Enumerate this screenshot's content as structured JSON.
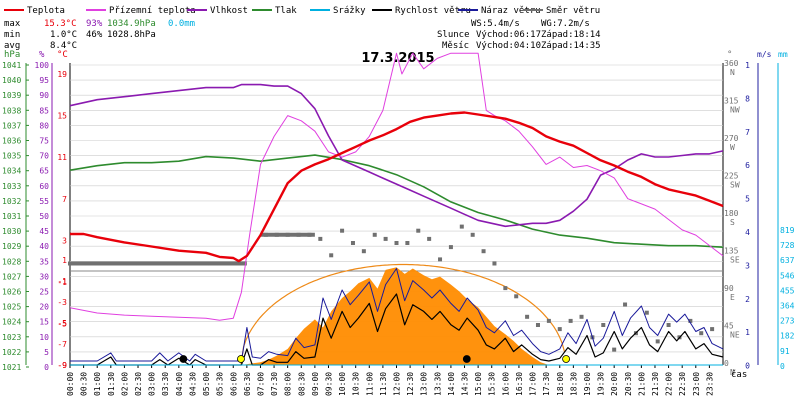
{
  "chart_data": {
    "type": "line",
    "title": "17.3.2015",
    "legend": [
      {
        "label": "Teplota",
        "color": "#e8000a"
      },
      {
        "label": "Přízemní teplota",
        "color": "#e040e0"
      },
      {
        "label": "Vlhkost",
        "color": "#8a1ab0"
      },
      {
        "label": "Tlak",
        "color": "#2e8b2e"
      },
      {
        "label": "Srážky",
        "color": "#00b0e0"
      },
      {
        "label": "Rychlost větru",
        "color": "#000000"
      },
      {
        "label": "Náraz větru",
        "color": "#1a1a9a"
      },
      {
        "label": "Směr větru",
        "color": "#707070"
      }
    ],
    "stats": {
      "max_label": "max",
      "max_temp": "15.3°C",
      "max_hum": "93%",
      "max_press": "1034.9hPa",
      "max_rain": "0.0mm",
      "min_label": "min",
      "min_temp": "1.0°C",
      "min_hum": "46%",
      "min_press": "1028.8hPa",
      "avg_label": "avg",
      "avg_temp": "8.4°C"
    },
    "info": {
      "ws": "WS:5.4m/s",
      "wg": "WG:7.2m/s",
      "sun_label": "Slunce",
      "sun_rise": "Východ:06:17",
      "sun_set": "Západ:18:14",
      "moon_label": "Měsíc",
      "moon_rise": "Východ:04:10",
      "moon_set": "Západ:14:35"
    },
    "axis_heads": {
      "hpa": "hPa",
      "pct": "%",
      "degc": "°C",
      "deg": "°",
      "ms": "m/s",
      "mm": "mm"
    },
    "axes": {
      "pressure_ticks": [
        "1041",
        "1040",
        "1039",
        "1038",
        "1037",
        "1036",
        "1035",
        "1034",
        "1033",
        "1032",
        "1031",
        "1030",
        "1029",
        "1028",
        "1027",
        "1026",
        "1025",
        "1024",
        "1023",
        "1022",
        "1021"
      ],
      "humidity_ticks": [
        "100",
        "95",
        "90",
        "85",
        "80",
        "75",
        "70",
        "65",
        "60",
        "55",
        "50",
        "45",
        "40",
        "35",
        "30",
        "25",
        "20",
        "15",
        "10",
        "5",
        "0"
      ],
      "temp_ticks": [
        "19",
        "15",
        "11",
        "7",
        "3",
        "-1",
        "-5",
        "-9"
      ],
      "temp_ticks_lower": [
        "1",
        "-1",
        "-3",
        "-5",
        "-7",
        "-9"
      ],
      "wind_dir_ticks": [
        {
          "deg": "360",
          "dir": "N"
        },
        {
          "deg": "315",
          "dir": "NW"
        },
        {
          "deg": "270",
          "dir": "W"
        },
        {
          "deg": "225",
          "dir": "SW"
        },
        {
          "deg": "180",
          "dir": "S"
        },
        {
          "deg": "135",
          "dir": "SE"
        },
        {
          "deg": "90",
          "dir": "E"
        },
        {
          "deg": "45",
          "dir": "NE"
        },
        {
          "deg": "0",
          "dir": "N"
        }
      ],
      "wind_speed_ticks": [
        "1",
        "8",
        "7",
        "6",
        "5",
        "4",
        "3",
        "2",
        "1",
        "0"
      ],
      "rain_ticks": [
        "819",
        "728",
        "637",
        "546",
        "455",
        "364",
        "273",
        "182",
        "91",
        "0"
      ],
      "time_ticks": [
        "00:00",
        "00:30",
        "01:00",
        "01:30",
        "02:00",
        "02:30",
        "03:00",
        "03:30",
        "04:00",
        "04:30",
        "05:00",
        "05:30",
        "06:00",
        "06:30",
        "07:00",
        "07:30",
        "08:00",
        "08:30",
        "09:00",
        "09:30",
        "10:00",
        "10:30",
        "11:00",
        "11:30",
        "12:00",
        "12:30",
        "13:00",
        "13:30",
        "14:00",
        "14:30",
        "15:00",
        "15:30",
        "16:00",
        "16:30",
        "17:00",
        "17:30",
        "18:00",
        "18:30",
        "19:00",
        "19:30",
        "20:00",
        "20:30",
        "21:00",
        "21:30",
        "22:00",
        "22:30",
        "23:00",
        "23:30"
      ],
      "time_label": "čas"
    },
    "x_range_hours": [
      0,
      24
    ],
    "series": [
      {
        "name": "Teplota",
        "unit": "°C",
        "color": "#e8000a",
        "x": [
          0,
          0.5,
          1,
          2,
          3,
          4,
          5,
          5.5,
          6,
          6.2,
          6.5,
          7,
          7.5,
          8,
          8.5,
          9,
          9.5,
          10,
          10.5,
          11,
          11.5,
          12,
          12.5,
          13,
          13.5,
          14,
          14.5,
          15,
          15.5,
          16,
          16.5,
          17,
          17.5,
          18,
          18.5,
          19,
          19.5,
          20,
          20.5,
          21,
          21.5,
          22,
          22.5,
          23,
          23.5,
          24
        ],
        "y": [
          3.6,
          3.6,
          3.3,
          2.8,
          2.4,
          2.0,
          1.8,
          1.4,
          1.3,
          1.0,
          1.5,
          3.5,
          6.0,
          8.5,
          9.7,
          10.3,
          10.8,
          11.4,
          12.0,
          12.6,
          13.1,
          13.7,
          14.4,
          14.8,
          15.0,
          15.2,
          15.3,
          15.1,
          14.9,
          14.7,
          14.3,
          13.8,
          13.0,
          12.5,
          12.1,
          11.4,
          10.7,
          10.2,
          9.6,
          9.1,
          8.4,
          7.9,
          7.6,
          7.3,
          6.8,
          6.3
        ]
      },
      {
        "name": "Přízemní teplota",
        "unit": "°C",
        "color": "#e040e0",
        "x": [
          0,
          1,
          2,
          3,
          4,
          5,
          5.5,
          6,
          6.3,
          6.6,
          7,
          7.5,
          8,
          8.5,
          9,
          9.5,
          10,
          10.5,
          11,
          11.5,
          12,
          12.2,
          12.6,
          13,
          13.5,
          14,
          14.5,
          15,
          15.3,
          15.6,
          16,
          16.5,
          17,
          17.5,
          18,
          18.5,
          19,
          19.5,
          20,
          20.5,
          21,
          21.5,
          22,
          22.5,
          23,
          23.5,
          24
        ],
        "y": [
          -3.5,
          -4.0,
          -4.2,
          -4.3,
          -4.4,
          -4.5,
          -4.7,
          -4.5,
          -2,
          3.5,
          10.3,
          13.0,
          15.0,
          14.5,
          13.5,
          11.5,
          11.0,
          11.5,
          13.0,
          15.5,
          21.0,
          19.0,
          21.0,
          19.5,
          20.5,
          21.0,
          21.0,
          21.0,
          15.5,
          15.0,
          14.5,
          13.5,
          12.0,
          10.3,
          11.0,
          10.0,
          10.2,
          9.7,
          9.0,
          7.0,
          6.5,
          6.0,
          5.0,
          4.0,
          3.5,
          2.5,
          1.5
        ]
      },
      {
        "name": "Vlhkost",
        "unit": "%",
        "color": "#8a1ab0",
        "x": [
          0,
          0.5,
          1,
          2,
          3,
          4,
          5,
          5.5,
          6,
          6.3,
          6.6,
          7,
          7.5,
          8,
          8.5,
          9,
          9.5,
          10,
          10.5,
          11,
          11.5,
          12,
          12.5,
          13,
          13.5,
          14,
          14.5,
          15,
          15.5,
          16,
          16.5,
          17,
          17.5,
          18,
          18.5,
          19,
          19.5,
          20,
          20.5,
          21,
          21.5,
          22,
          22.5,
          23,
          23.5,
          24
        ],
        "y": [
          86,
          87,
          88,
          89,
          90,
          91,
          92,
          92,
          92,
          93,
          93,
          93,
          92.5,
          92.5,
          90,
          85,
          76,
          68,
          66,
          64,
          62,
          60,
          58,
          56,
          54,
          52,
          50,
          48,
          47,
          46,
          46.5,
          47,
          47,
          48,
          51,
          55,
          63,
          65,
          68,
          70,
          69,
          69,
          69.5,
          70,
          70,
          71
        ]
      },
      {
        "name": "Tlak",
        "unit": "hPa",
        "color": "#2e8b2e",
        "x": [
          0,
          1,
          2,
          3,
          4,
          5,
          6,
          7,
          8,
          9,
          10,
          11,
          12,
          13,
          14,
          15,
          16,
          17,
          18,
          19,
          20,
          21,
          22,
          23,
          24
        ],
        "y": [
          1033.9,
          1034.2,
          1034.4,
          1034.4,
          1034.5,
          1034.8,
          1034.7,
          1034.5,
          1034.7,
          1034.9,
          1034.6,
          1034.2,
          1033.6,
          1032.8,
          1031.8,
          1031.1,
          1030.6,
          1030.0,
          1029.6,
          1029.4,
          1029.1,
          1029.0,
          1028.9,
          1028.9,
          1028.8
        ]
      },
      {
        "name": "Srážky",
        "unit": "mm",
        "color": "#00b0e0",
        "x": [
          0,
          24
        ],
        "y": [
          0,
          0
        ]
      }
    ],
    "sun_curve_color": "#ee8a18",
    "sun_fill_color": "#ff8c00",
    "sun_fill": [
      {
        "t": 6.3,
        "v": 0.0
      },
      {
        "t": 6.6,
        "v": 0.1
      },
      {
        "t": 7.0,
        "v": 0.2
      },
      {
        "t": 7.3,
        "v": 0.4
      },
      {
        "t": 7.6,
        "v": 0.7
      },
      {
        "t": 8.0,
        "v": 1.2
      },
      {
        "t": 8.3,
        "v": 2.0
      },
      {
        "t": 8.6,
        "v": 2.7
      },
      {
        "t": 9.0,
        "v": 3.4
      },
      {
        "t": 9.3,
        "v": 2.8
      },
      {
        "t": 9.6,
        "v": 4.0
      },
      {
        "t": 10.0,
        "v": 5.0
      },
      {
        "t": 10.3,
        "v": 5.5
      },
      {
        "t": 10.6,
        "v": 6.1
      },
      {
        "t": 11.0,
        "v": 6.5
      },
      {
        "t": 11.3,
        "v": 5.7
      },
      {
        "t": 11.6,
        "v": 7.1
      },
      {
        "t": 12.0,
        "v": 7.3
      },
      {
        "t": 12.3,
        "v": 6.8
      },
      {
        "t": 12.6,
        "v": 7.2
      },
      {
        "t": 13.0,
        "v": 6.7
      },
      {
        "t": 13.3,
        "v": 6.4
      },
      {
        "t": 13.6,
        "v": 6.6
      },
      {
        "t": 14.0,
        "v": 6.0
      },
      {
        "t": 14.3,
        "v": 5.5
      },
      {
        "t": 14.6,
        "v": 4.9
      },
      {
        "t": 15.0,
        "v": 4.3
      },
      {
        "t": 15.3,
        "v": 3.6
      },
      {
        "t": 15.6,
        "v": 2.9
      },
      {
        "t": 16.0,
        "v": 2.3
      },
      {
        "t": 16.3,
        "v": 1.8
      },
      {
        "t": 16.6,
        "v": 1.2
      },
      {
        "t": 17.0,
        "v": 0.6
      },
      {
        "t": 17.3,
        "v": 0.2
      },
      {
        "t": 17.6,
        "v": 0.0
      }
    ],
    "wind_speed": {
      "name": "Rychlost větru",
      "unit": "m/s",
      "color": "#000000",
      "x": [
        0,
        1,
        1.5,
        1.7,
        2,
        3,
        3.3,
        3.6,
        4,
        4.4,
        4.6,
        5,
        5.5,
        6.3,
        6.5,
        6.7,
        7,
        7.3,
        7.6,
        8,
        8.3,
        8.6,
        9,
        9.3,
        9.6,
        10,
        10.3,
        10.6,
        11,
        11.3,
        11.6,
        12,
        12.3,
        12.6,
        13,
        13.3,
        13.6,
        14,
        14.3,
        14.6,
        15,
        15.3,
        15.6,
        16,
        16.3,
        16.6,
        17,
        17.3,
        17.6,
        18,
        18.3,
        18.6,
        19,
        19.3,
        19.6,
        20,
        20.3,
        20.6,
        21,
        21.3,
        21.6,
        22,
        22.3,
        22.6,
        23,
        23.3,
        23.6,
        24
      ],
      "y": [
        0,
        0,
        0.6,
        0,
        0,
        0,
        0.4,
        0,
        0.5,
        0,
        0.4,
        0,
        0,
        0,
        1.2,
        0,
        0,
        0.4,
        0.2,
        0.2,
        1.0,
        0.5,
        0.6,
        3.5,
        2.0,
        4.0,
        2.8,
        3.5,
        4.6,
        2.5,
        4.2,
        5.3,
        3.0,
        4.5,
        4.0,
        3.4,
        4.0,
        3.0,
        2.6,
        3.5,
        2.6,
        1.5,
        1.2,
        2.0,
        1.0,
        1.5,
        0.8,
        0.4,
        0.3,
        0.5,
        1.3,
        0.8,
        2.2,
        0.6,
        0.9,
        2.5,
        1.2,
        2.0,
        2.8,
        1.5,
        1.0,
        2.5,
        1.8,
        2.5,
        1.2,
        1.6,
        0.8,
        0.6
      ]
    },
    "wind_gust": {
      "name": "Náraz větru",
      "unit": "m/s",
      "color": "#1a1a9a",
      "x": [
        0,
        1,
        1.5,
        1.7,
        2,
        3,
        3.3,
        3.6,
        4,
        4.4,
        4.6,
        5,
        5.5,
        6.3,
        6.5,
        6.7,
        7,
        7.3,
        7.6,
        8,
        8.3,
        8.6,
        9,
        9.3,
        9.6,
        10,
        10.3,
        10.6,
        11,
        11.3,
        11.6,
        12,
        12.3,
        12.6,
        13,
        13.3,
        13.6,
        14,
        14.3,
        14.6,
        15,
        15.3,
        15.6,
        16,
        16.3,
        16.6,
        17,
        17.3,
        17.6,
        18,
        18.3,
        18.6,
        19,
        19.3,
        19.6,
        20,
        20.3,
        20.6,
        21,
        21.3,
        21.6,
        22,
        22.3,
        22.6,
        23,
        23.3,
        23.6,
        24
      ],
      "y": [
        0.3,
        0.3,
        0.9,
        0.3,
        0.3,
        0.3,
        0.9,
        0.3,
        0.9,
        0.3,
        0.8,
        0.3,
        0.3,
        0.3,
        2.8,
        0.6,
        0.5,
        1.0,
        0.8,
        0.7,
        2.0,
        1.3,
        1.5,
        5.0,
        3.4,
        5.6,
        4.5,
        5.2,
        6.2,
        4.0,
        6.0,
        7.2,
        4.8,
        6.3,
        5.6,
        5.0,
        5.6,
        4.6,
        4.0,
        5.0,
        4.1,
        2.8,
        2.4,
        3.3,
        2.2,
        2.6,
        1.6,
        1.0,
        0.8,
        1.2,
        2.4,
        1.6,
        3.4,
        1.4,
        2.0,
        4.0,
        2.2,
        3.5,
        4.4,
        2.8,
        2.2,
        3.8,
        3.2,
        3.8,
        2.5,
        2.8,
        1.6,
        1.2
      ]
    },
    "wind_dir": {
      "name": "Směr větru",
      "unit": "°",
      "color": "#707070",
      "x": [
        0,
        0.5,
        1,
        1.5,
        2,
        2.5,
        3,
        3.5,
        4,
        4.5,
        5,
        5.5,
        6,
        7.2,
        7.6,
        8,
        8.4,
        8.8,
        9.2,
        9.6,
        10,
        10.4,
        10.8,
        11.2,
        11.6,
        12,
        12.4,
        12.8,
        13.2,
        13.6,
        14,
        14.4,
        14.8,
        15.2,
        15.6,
        16,
        16.4,
        16.8,
        17.2,
        17.6,
        18,
        18.4,
        18.8,
        19.2,
        19.6,
        20,
        20.4,
        20.8,
        21.2,
        21.6,
        22,
        22.4,
        22.8,
        23.2,
        23.6
      ],
      "y": [
        125,
        125,
        125,
        125,
        125,
        125,
        125,
        125,
        125,
        125,
        125,
        125,
        125,
        160,
        160,
        160,
        160,
        160,
        155,
        135,
        165,
        150,
        140,
        160,
        155,
        150,
        150,
        165,
        155,
        130,
        145,
        170,
        160,
        140,
        125,
        95,
        85,
        60,
        50,
        55,
        45,
        55,
        60,
        35,
        50,
        20,
        75,
        40,
        65,
        30,
        50,
        35,
        55,
        40,
        45
      ]
    },
    "markers": [
      {
        "type": "moonrise",
        "time": "04:10",
        "color": "#000000"
      },
      {
        "type": "sunrise",
        "time": "06:17",
        "color": "#ffff00"
      },
      {
        "type": "moonset",
        "time": "14:35",
        "color": "#000000"
      },
      {
        "type": "sunset",
        "time": "18:14",
        "color": "#ffff00"
      }
    ],
    "colors": {
      "axis_pressure": "#2e8b2e",
      "axis_humidity": "#8a1ab0",
      "axis_temp": "#e8000a",
      "axis_winddir": "#707070",
      "axis_windspeed": "#2020a0",
      "axis_rain": "#00b0e0",
      "grid": "#cccccc",
      "zero_line": "#888888"
    }
  }
}
